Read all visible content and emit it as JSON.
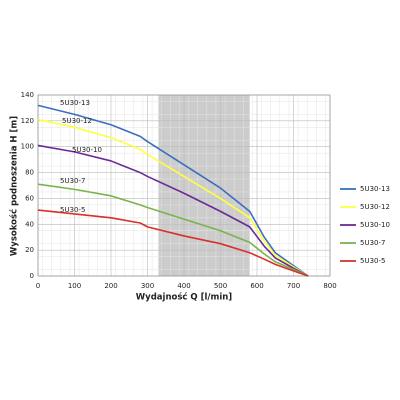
{
  "chart_data": {
    "type": "line",
    "xlabel": "Wydajność Q [l/min]",
    "ylabel": "Wysokość podnoszenia H [m]",
    "xlim": [
      0,
      800
    ],
    "xticks": [
      0,
      100,
      200,
      300,
      400,
      500,
      600,
      700,
      800
    ],
    "ylim": [
      0,
      140
    ],
    "yticks": [
      0,
      20,
      40,
      60,
      80,
      100,
      120,
      140
    ],
    "grid": true,
    "legend": "right",
    "shaded_range": [
      330,
      580
    ],
    "shade_color": "#cccccc",
    "x": [
      0,
      100,
      200,
      280,
      300,
      400,
      500,
      580,
      620,
      650,
      700,
      740
    ],
    "series": [
      {
        "name": "5U30-13",
        "color": "#3a6fbf",
        "values": [
          132,
          125,
          117,
          108,
          104,
          86,
          68,
          50,
          30,
          18,
          8,
          0
        ]
      },
      {
        "name": "5U30-12",
        "color": "#ffff40",
        "values": [
          121,
          115,
          107,
          98,
          94,
          77,
          60,
          45,
          27,
          16,
          7,
          0
        ]
      },
      {
        "name": "5U30-10",
        "color": "#6a2a9a",
        "values": [
          101,
          96,
          89,
          80,
          77,
          64,
          50,
          38,
          23,
          14,
          6,
          0
        ]
      },
      {
        "name": "5U30-7",
        "color": "#7bb34a",
        "values": [
          71,
          67,
          62,
          55,
          53,
          44,
          35,
          26,
          17,
          11,
          5,
          0
        ]
      },
      {
        "name": "5U30-5",
        "color": "#d9302a",
        "values": [
          51,
          48,
          45,
          41,
          38,
          31,
          25,
          18,
          13,
          9,
          4,
          0
        ]
      }
    ],
    "annotations": [
      "5U30-13",
      "5U30-12",
      "5U30-10",
      "5U30-7",
      "5U30-5"
    ]
  }
}
